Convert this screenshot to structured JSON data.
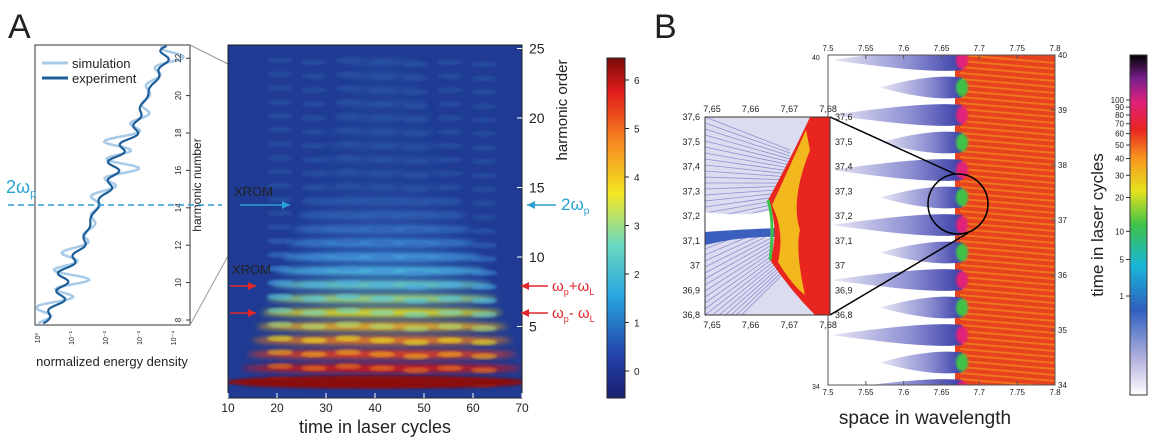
{
  "panel_a": {
    "label": "A",
    "spectrum": {
      "legend": [
        "simulation",
        "experiment"
      ],
      "ylabel": "harmonic number",
      "yticks": [
        8,
        10,
        12,
        14,
        16,
        18,
        20,
        22
      ],
      "xticks": [
        "10⁰",
        "10⁻¹",
        "10⁻²",
        "10⁻³",
        "10⁻⁴"
      ],
      "xlabel": "normalized energy density",
      "marker": {
        "main": "2ω",
        "sub": "p"
      }
    },
    "spectrogram": {
      "xlabel": "time in laser cycles",
      "ylabel": "harmonic order",
      "xticks": [
        10,
        20,
        30,
        40,
        50,
        60,
        70
      ],
      "yticks": [
        5,
        10,
        15,
        20,
        25
      ],
      "colorbar_ticks": [
        0,
        1,
        2,
        3,
        4,
        5,
        6
      ],
      "annotations": {
        "xrom_blue": "XROM",
        "xrom_red": "XROM",
        "two_omega": {
          "main": "2ω",
          "sub": "p"
        },
        "sum": [
          "ω",
          "p",
          "+ω",
          "L"
        ],
        "diff": [
          "ω",
          "p",
          "- ω",
          "L"
        ]
      }
    }
  },
  "panel_b": {
    "label": "B",
    "inset": {
      "xticks": [
        "7,65",
        "7,66",
        "7,67",
        "7,68"
      ],
      "yticks": [
        "37,6",
        "37,5",
        "37,4",
        "37,3",
        "37,2",
        "37,1",
        "37",
        "36,9",
        "36,8"
      ]
    },
    "main": {
      "xticks": [
        7.5,
        7.55,
        7.6,
        7.65,
        7.7,
        7.75,
        7.8
      ],
      "yticks": [
        34,
        35,
        36,
        37,
        38,
        39,
        40
      ],
      "xlabel": "space in wavelength"
    },
    "colorbar": {
      "label": "time in laser cycles",
      "ticks": [
        1,
        5,
        10,
        20,
        30,
        40,
        50,
        60,
        70,
        80,
        90,
        100
      ]
    }
  }
}
